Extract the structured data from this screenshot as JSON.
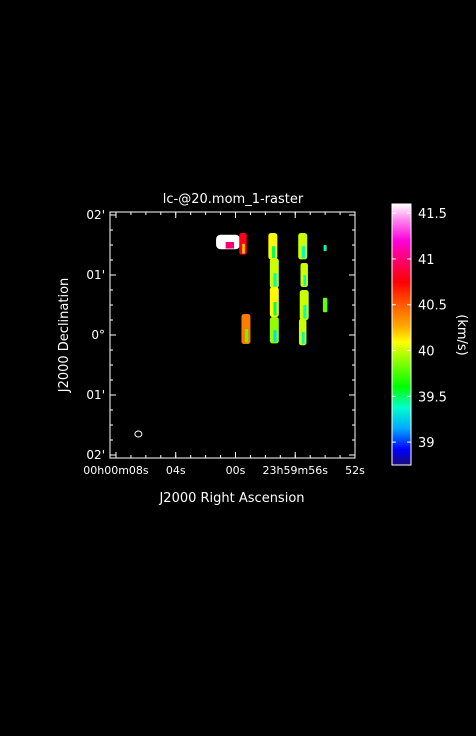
{
  "title": "lc-@20.mom_1-raster",
  "xlabel": "J2000 Right Ascension",
  "ylabel": "J2000 Declination",
  "colorbar": {
    "unit_label": "(km/s)",
    "min": 38.75,
    "max": 41.6,
    "ticks": [
      {
        "v": 39,
        "label": "39"
      },
      {
        "v": 39.5,
        "label": "39.5"
      },
      {
        "v": 40,
        "label": "40"
      },
      {
        "v": 40.5,
        "label": "40.5"
      },
      {
        "v": 41,
        "label": "41"
      },
      {
        "v": 41.5,
        "label": "41.5"
      }
    ]
  },
  "chart_data": {
    "type": "heatmap",
    "title": "lc-@20.mom_1-raster",
    "xlabel": "J2000 Right Ascension",
    "ylabel": "J2000 Declination",
    "x_ticks": [
      {
        "label": "00h00m08s",
        "ra_sec_offset": 8
      },
      {
        "label": "04s",
        "ra_sec_offset": 4
      },
      {
        "label": "00s",
        "ra_sec_offset": 0
      },
      {
        "label": "23h59m56s",
        "ra_sec_offset": -4
      },
      {
        "label": "52s",
        "ra_sec_offset": -8
      }
    ],
    "y_ticks": [
      {
        "label": "02'",
        "arcmin": 2
      },
      {
        "label": "01'",
        "arcmin": 1
      },
      {
        "label": "0°",
        "arcmin": 0
      },
      {
        "label": "01'",
        "arcmin": -1
      },
      {
        "label": "02'",
        "arcmin": -2
      }
    ],
    "xlim": [
      8.4,
      -8.0
    ],
    "ylim": [
      -2.05,
      2.05
    ],
    "blobs": [
      {
        "ra": 0.5,
        "dec": 1.55,
        "value": 41.6,
        "w": 0.8,
        "h": 0.12
      },
      {
        "ra": -0.5,
        "dec": 1.52,
        "value": 40.8,
        "w": 0.25,
        "h": 0.18
      },
      {
        "ra": -2.5,
        "dec": 1.48,
        "value": 40.1,
        "w": 0.3,
        "h": 0.22
      },
      {
        "ra": -4.5,
        "dec": 1.48,
        "value": 40.0,
        "w": 0.3,
        "h": 0.22
      },
      {
        "ra": -6.0,
        "dec": 1.45,
        "value": 39.4,
        "w": 0.05,
        "h": 0.05
      },
      {
        "ra": -2.6,
        "dec": 1.03,
        "value": 40.0,
        "w": 0.3,
        "h": 0.25
      },
      {
        "ra": -4.6,
        "dec": 1.0,
        "value": 40.0,
        "w": 0.25,
        "h": 0.2
      },
      {
        "ra": -2.6,
        "dec": 0.55,
        "value": 40.1,
        "w": 0.3,
        "h": 0.25
      },
      {
        "ra": -4.6,
        "dec": 0.5,
        "value": 40.0,
        "w": 0.3,
        "h": 0.25
      },
      {
        "ra": -6.0,
        "dec": 0.5,
        "value": 39.8,
        "w": 0.15,
        "h": 0.12
      },
      {
        "ra": -0.7,
        "dec": 0.1,
        "value": 40.4,
        "w": 0.3,
        "h": 0.25
      },
      {
        "ra": -2.6,
        "dec": 0.08,
        "value": 39.9,
        "w": 0.3,
        "h": 0.22
      },
      {
        "ra": -4.5,
        "dec": 0.05,
        "value": 40.0,
        "w": 0.25,
        "h": 0.22
      }
    ],
    "beam": {
      "ra": 6.5,
      "dec": -1.65
    }
  }
}
